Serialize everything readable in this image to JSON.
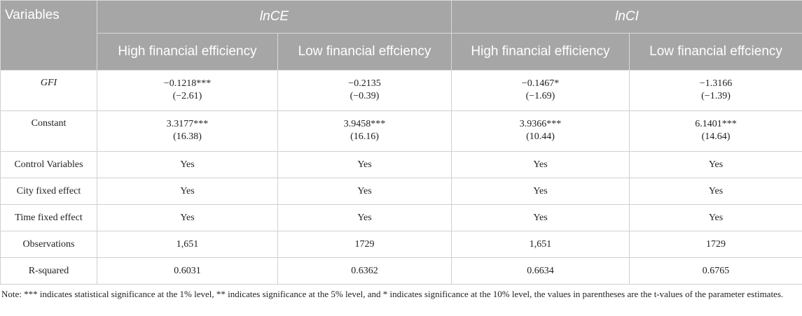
{
  "header": {
    "variables": "Variables",
    "groups": [
      "lnCE",
      "lnCI"
    ],
    "subs": [
      "High financial efficiency",
      "Low financial effciency",
      "High financial efficiency",
      "Low financial effciency"
    ]
  },
  "rows": {
    "gfi": {
      "label": "GFI",
      "vals": [
        "−0.1218***",
        "−0.2135",
        "−0.1467*",
        "−1.3166"
      ],
      "tvals": [
        "(−2.61)",
        "(−0.39)",
        "(−1.69)",
        "(−1.39)"
      ]
    },
    "constant": {
      "label": "Constant",
      "vals": [
        "3.3177***",
        "3.9458***",
        "3.9366***",
        "6.1401***"
      ],
      "tvals": [
        "(16.38)",
        "(16.16)",
        "(10.44)",
        "(14.64)"
      ]
    },
    "control": {
      "label": "Control Variables",
      "vals": [
        "Yes",
        "Yes",
        "Yes",
        "Yes"
      ]
    },
    "city": {
      "label": "City fixed effect",
      "vals": [
        "Yes",
        "Yes",
        "Yes",
        "Yes"
      ]
    },
    "time": {
      "label": "Time fixed effect",
      "vals": [
        "Yes",
        "Yes",
        "Yes",
        "Yes"
      ]
    },
    "obs": {
      "label": "Observations",
      "vals": [
        "1,651",
        "1729",
        "1,651",
        "1729"
      ]
    },
    "r2": {
      "label": "R-squared",
      "vals": [
        "0.6031",
        "0.6362",
        "0.6634",
        "0.6765"
      ]
    }
  },
  "note": "Note: *** indicates statistical significance at the 1% level, ** indicates significance at the 5% level, and * indicates significance at the 10% level, the values in parentheses are the t-values of the parameter estimates."
}
